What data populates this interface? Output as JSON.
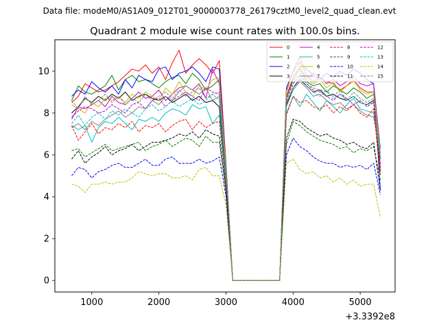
{
  "suptitle": "Data file: modeM0/AS1A09_012T01_9000003778_26179cztM0_level2_quad_clean.evt",
  "chart_data": {
    "type": "line",
    "title": "Quadrant 2 module wise count rates with 100.0s bins.",
    "xlabel": "",
    "ylabel": "",
    "x_offset_label": "+3.3392e8",
    "xlim": [
      450,
      5520
    ],
    "ylim": [
      -0.55,
      11.5
    ],
    "x_ticks": [
      1000,
      2000,
      3000,
      4000,
      5000
    ],
    "x_tick_labels": [
      "1000",
      "2000",
      "3000",
      "4000",
      "5000"
    ],
    "y_ticks": [
      0,
      2,
      4,
      6,
      8,
      10
    ],
    "y_tick_labels": [
      "0",
      "2",
      "4",
      "6",
      "8",
      "10"
    ],
    "x": [
      700,
      800,
      900,
      1000,
      1100,
      1200,
      1300,
      1400,
      1500,
      1600,
      1700,
      1800,
      1900,
      2000,
      2100,
      2200,
      2300,
      2400,
      2500,
      2600,
      2700,
      2800,
      2900,
      3000,
      3100,
      3200,
      3300,
      3400,
      3500,
      3600,
      3700,
      3800,
      3900,
      4000,
      4100,
      4200,
      4300,
      4400,
      4500,
      4600,
      4700,
      4800,
      4900,
      5000,
      5100,
      5200,
      5300
    ],
    "series": [
      {
        "name": "0",
        "color": "#ff0000",
        "dash": "solid",
        "values": [
          8.5,
          8.8,
          9.4,
          9.2,
          9.0,
          9.1,
          9.3,
          9.5,
          9.8,
          10.1,
          10.0,
          10.3,
          9.9,
          10.2,
          9.6,
          10.4,
          11.0,
          9.9,
          10.3,
          10.6,
          10.3,
          9.9,
          10.5,
          5.6,
          0,
          0,
          0,
          0,
          0,
          0,
          0,
          0,
          8.8,
          9.7,
          10.2,
          9.6,
          9.9,
          9.7,
          9.5,
          9.4,
          9.1,
          9.3,
          9.6,
          9.2,
          9.0,
          9.0,
          5.4
        ]
      },
      {
        "name": "1",
        "color": "#008000",
        "dash": "solid",
        "values": [
          8.6,
          9.3,
          9.0,
          8.9,
          9.1,
          9.3,
          9.8,
          9.1,
          9.6,
          9.8,
          9.5,
          9.6,
          9.4,
          9.2,
          9.5,
          9.7,
          9.8,
          9.4,
          9.9,
          9.6,
          9.1,
          9.3,
          9.6,
          5.4,
          0,
          0,
          0,
          0,
          0,
          0,
          0,
          0,
          8.7,
          9.6,
          10.1,
          9.5,
          9.3,
          9.4,
          9.0,
          9.3,
          9.1,
          8.9,
          9.2,
          9.0,
          8.7,
          8.9,
          5.8
        ]
      },
      {
        "name": "2",
        "color": "#0000ff",
        "dash": "solid",
        "values": [
          8.8,
          9.1,
          8.9,
          9.5,
          9.2,
          9.0,
          9.3,
          8.9,
          9.6,
          9.2,
          9.8,
          9.6,
          9.5,
          10.1,
          10.2,
          9.6,
          9.9,
          10.0,
          10.2,
          9.9,
          9.5,
          10.2,
          10.1,
          5.5,
          0,
          0,
          0,
          0,
          0,
          0,
          0,
          0,
          9.2,
          10.0,
          10.4,
          10.1,
          9.8,
          9.6,
          9.9,
          9.7,
          10.0,
          9.8,
          10.1,
          9.9,
          9.6,
          9.4,
          4.3
        ]
      },
      {
        "name": "3",
        "color": "#000000",
        "dash": "solid",
        "values": [
          8.0,
          8.3,
          8.7,
          8.5,
          8.8,
          8.6,
          8.9,
          8.7,
          9.0,
          8.6,
          8.8,
          8.9,
          8.7,
          8.6,
          8.8,
          8.5,
          8.7,
          8.9,
          8.6,
          8.8,
          8.5,
          8.6,
          8.3,
          4.9,
          0,
          0,
          0,
          0,
          0,
          0,
          0,
          0,
          8.4,
          9.2,
          9.6,
          9.3,
          9.0,
          9.1,
          8.8,
          8.9,
          8.7,
          8.6,
          8.8,
          8.5,
          8.4,
          8.6,
          5.2
        ]
      },
      {
        "name": "4",
        "color": "#bf00bf",
        "dash": "solid",
        "values": [
          7.7,
          8.3,
          8.2,
          8.4,
          8.6,
          8.3,
          8.8,
          8.5,
          8.4,
          8.7,
          9.0,
          8.7,
          8.8,
          9.1,
          8.6,
          8.9,
          9.2,
          9.3,
          9.1,
          9.4,
          8.7,
          10.1,
          9.4,
          5.3,
          0,
          0,
          0,
          0,
          0,
          0,
          0,
          0,
          9.0,
          10.0,
          10.7,
          9.8,
          9.5,
          9.7,
          9.4,
          9.6,
          9.3,
          9.5,
          9.8,
          9.4,
          9.3,
          9.4,
          6.3
        ]
      },
      {
        "name": "5",
        "color": "#00bfbf",
        "dash": "solid",
        "values": [
          7.4,
          7.2,
          7.4,
          6.6,
          7.3,
          7.6,
          7.5,
          7.8,
          7.5,
          7.2,
          7.7,
          7.6,
          7.8,
          7.6,
          8.0,
          8.2,
          8.1,
          7.9,
          8.4,
          8.2,
          8.3,
          7.5,
          7.9,
          4.6,
          0,
          0,
          0,
          0,
          0,
          0,
          0,
          0,
          8.0,
          8.8,
          8.3,
          8.9,
          8.5,
          8.1,
          8.6,
          8.3,
          8.0,
          8.4,
          8.7,
          8.2,
          8.1,
          8.0,
          6.4
        ]
      },
      {
        "name": "6",
        "color": "#bfbf00",
        "dash": "solid",
        "values": [
          8.4,
          8.2,
          8.0,
          8.5,
          8.3,
          8.7,
          8.6,
          8.8,
          8.5,
          8.9,
          8.7,
          9.0,
          8.8,
          8.6,
          9.2,
          8.9,
          9.5,
          9.0,
          8.8,
          9.3,
          9.1,
          9.6,
          9.7,
          5.4,
          0,
          0,
          0,
          0,
          0,
          0,
          0,
          0,
          9.1,
          9.9,
          10.5,
          9.6,
          9.4,
          9.6,
          9.2,
          9.5,
          9.0,
          9.3,
          9.5,
          9.1,
          8.9,
          9.0,
          6.0
        ]
      },
      {
        "name": "7",
        "color": "#808080",
        "dash": "solid",
        "values": [
          7.3,
          7.5,
          7.2,
          7.6,
          7.4,
          7.7,
          7.9,
          8.1,
          7.8,
          8.0,
          8.3,
          8.2,
          8.6,
          8.4,
          8.8,
          8.6,
          9.0,
          9.3,
          9.1,
          8.9,
          9.2,
          8.6,
          8.8,
          5.0,
          0,
          0,
          0,
          0,
          0,
          0,
          0,
          0,
          8.3,
          9.1,
          9.5,
          9.2,
          8.8,
          8.9,
          8.6,
          8.4,
          8.5,
          8.2,
          8.4,
          8.1,
          7.9,
          7.8,
          6.1
        ]
      },
      {
        "name": "8",
        "color": "#ff0000",
        "dash": "dashed",
        "values": [
          7.4,
          6.7,
          7.1,
          7.5,
          7.0,
          7.3,
          7.2,
          7.5,
          7.3,
          7.6,
          7.1,
          7.4,
          7.3,
          7.5,
          7.1,
          7.4,
          7.6,
          7.7,
          7.2,
          7.6,
          7.3,
          7.5,
          7.6,
          4.5,
          0,
          0,
          0,
          0,
          0,
          0,
          0,
          0,
          7.9,
          8.8,
          8.5,
          8.6,
          8.3,
          8.2,
          8.4,
          8.0,
          8.3,
          8.1,
          8.4,
          8.0,
          7.8,
          8.2,
          5.0
        ]
      },
      {
        "name": "9",
        "color": "#008000",
        "dash": "dashed",
        "values": [
          6.2,
          6.3,
          5.9,
          6.1,
          6.3,
          6.5,
          6.2,
          6.3,
          6.4,
          6.5,
          6.6,
          6.2,
          6.4,
          6.5,
          6.7,
          6.4,
          6.6,
          6.8,
          6.7,
          6.4,
          6.9,
          6.6,
          6.6,
          4.2,
          0,
          0,
          0,
          0,
          0,
          0,
          0,
          0,
          6.5,
          7.6,
          7.4,
          7.1,
          6.9,
          6.7,
          6.6,
          6.5,
          6.3,
          6.4,
          6.1,
          6.3,
          6.2,
          6.4,
          4.8
        ]
      },
      {
        "name": "10",
        "color": "#0000ff",
        "dash": "dashed",
        "values": [
          5.0,
          5.4,
          5.3,
          4.9,
          5.2,
          5.3,
          5.5,
          5.6,
          5.4,
          5.4,
          5.6,
          5.8,
          5.5,
          5.5,
          5.8,
          5.9,
          5.6,
          5.6,
          5.6,
          5.8,
          5.6,
          5.7,
          5.9,
          4.0,
          0,
          0,
          0,
          0,
          0,
          0,
          0,
          0,
          6.0,
          6.8,
          6.4,
          6.2,
          5.9,
          5.7,
          5.6,
          5.6,
          5.4,
          5.5,
          5.4,
          5.5,
          5.3,
          5.6,
          4.1
        ]
      },
      {
        "name": "11",
        "color": "#000000",
        "dash": "dashed",
        "values": [
          5.8,
          6.2,
          5.6,
          5.9,
          6.1,
          6.4,
          6.0,
          6.2,
          6.3,
          6.5,
          6.2,
          6.4,
          6.6,
          6.6,
          6.7,
          6.8,
          7.0,
          6.9,
          7.1,
          6.8,
          7.2,
          7.0,
          6.9,
          4.4,
          0,
          0,
          0,
          0,
          0,
          0,
          0,
          0,
          6.8,
          7.7,
          7.6,
          7.3,
          7.1,
          6.9,
          7.0,
          6.8,
          6.7,
          6.5,
          6.6,
          6.4,
          6.3,
          6.6,
          4.3
        ]
      },
      {
        "name": "12",
        "color": "#bf00bf",
        "dash": "dashed",
        "values": [
          7.8,
          8.1,
          8.3,
          8.2,
          8.0,
          8.1,
          8.4,
          8.2,
          8.0,
          8.4,
          8.5,
          8.2,
          8.6,
          8.7,
          8.3,
          8.6,
          8.8,
          9.0,
          8.8,
          8.6,
          9.2,
          9.0,
          8.9,
          5.1,
          0,
          0,
          0,
          0,
          0,
          0,
          0,
          0,
          8.6,
          9.4,
          9.8,
          9.4,
          9.1,
          9.0,
          8.8,
          8.6,
          8.9,
          8.7,
          8.4,
          8.6,
          8.3,
          8.5,
          5.6
        ]
      },
      {
        "name": "13",
        "color": "#00bfbf",
        "dash": "dashed",
        "values": [
          7.5,
          7.9,
          7.4,
          7.8,
          8.0,
          7.7,
          8.1,
          7.9,
          8.2,
          8.0,
          7.8,
          8.2,
          8.4,
          8.1,
          8.3,
          8.6,
          8.3,
          8.5,
          8.7,
          8.4,
          8.6,
          8.9,
          8.6,
          5.0,
          0,
          0,
          0,
          0,
          0,
          0,
          0,
          0,
          8.5,
          9.2,
          9.7,
          9.3,
          9.0,
          8.8,
          9.1,
          8.7,
          8.9,
          8.6,
          8.8,
          8.5,
          8.4,
          8.5,
          5.9
        ]
      },
      {
        "name": "14",
        "color": "#bfbf00",
        "dash": "dashed",
        "values": [
          4.6,
          4.5,
          4.2,
          4.6,
          4.6,
          4.7,
          4.6,
          4.7,
          4.7,
          4.9,
          5.2,
          5.1,
          5.0,
          5.1,
          5.1,
          4.9,
          4.9,
          5.0,
          4.8,
          5.3,
          5.4,
          5.0,
          5.0,
          3.6,
          0,
          0,
          0,
          0,
          0,
          0,
          0,
          0,
          5.6,
          5.8,
          5.3,
          5.1,
          5.2,
          4.9,
          5.0,
          4.7,
          4.9,
          4.6,
          4.8,
          4.5,
          4.6,
          4.6,
          3.0
        ]
      },
      {
        "name": "15",
        "color": "#808080",
        "dash": "dashed",
        "values": [
          8.6,
          8.2,
          8.8,
          8.4,
          8.6,
          8.9,
          8.5,
          8.8,
          8.4,
          8.7,
          8.5,
          8.9,
          8.6,
          8.8,
          9.0,
          8.7,
          9.1,
          8.8,
          9.0,
          9.2,
          8.7,
          8.9,
          9.0,
          5.2,
          0,
          0,
          0,
          0,
          0,
          0,
          0,
          0,
          8.7,
          9.5,
          9.9,
          9.4,
          9.2,
          9.1,
          9.0,
          8.8,
          9.1,
          8.6,
          9.0,
          8.7,
          8.5,
          8.7,
          5.3
        ]
      }
    ],
    "legend": {
      "location": "top-right",
      "columns": 4
    }
  }
}
